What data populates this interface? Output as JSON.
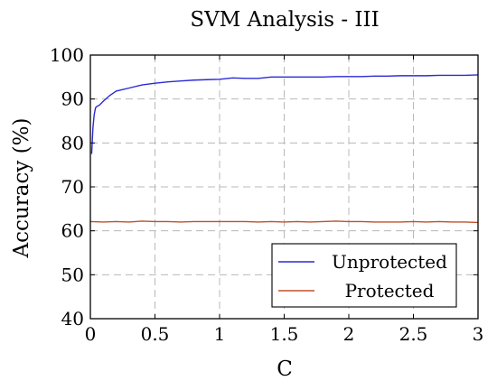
{
  "chart_data": {
    "type": "line",
    "title": "SVM Analysis - III",
    "xlabel": "C",
    "ylabel": "Accuracy (%)",
    "xlim": [
      0,
      3
    ],
    "ylim": [
      40,
      100
    ],
    "xticks": [
      0,
      0.5,
      1,
      1.5,
      2,
      2.5,
      3
    ],
    "xtick_labels": [
      "0",
      "0.5",
      "1",
      "1.5",
      "2",
      "2.5",
      "3"
    ],
    "yticks": [
      40,
      50,
      60,
      70,
      80,
      90,
      100
    ],
    "ytick_labels": [
      "40",
      "50",
      "60",
      "70",
      "80",
      "90",
      "100"
    ],
    "grid": true,
    "legend_position": "bottom-right",
    "series": [
      {
        "name": "Unprotected",
        "color": "#2a2ad6",
        "x": [
          0.01,
          0.02,
          0.03,
          0.04,
          0.05,
          0.07,
          0.1,
          0.15,
          0.2,
          0.3,
          0.4,
          0.5,
          0.6,
          0.7,
          0.8,
          0.9,
          1.0,
          1.1,
          1.2,
          1.3,
          1.4,
          1.5,
          1.6,
          1.7,
          1.8,
          1.9,
          2.0,
          2.1,
          2.2,
          2.3,
          2.4,
          2.5,
          2.6,
          2.7,
          2.8,
          2.9,
          3.0
        ],
        "y": [
          77.5,
          83.5,
          86.5,
          88.0,
          88.3,
          88.6,
          89.5,
          90.8,
          91.8,
          92.5,
          93.2,
          93.6,
          93.9,
          94.1,
          94.3,
          94.4,
          94.5,
          94.8,
          94.7,
          94.7,
          95.0,
          95.0,
          95.0,
          95.0,
          95.0,
          95.1,
          95.1,
          95.1,
          95.2,
          95.2,
          95.3,
          95.3,
          95.3,
          95.4,
          95.4,
          95.4,
          95.5
        ]
      },
      {
        "name": "Protected",
        "color": "#c0502a",
        "x": [
          0.0,
          0.1,
          0.2,
          0.3,
          0.4,
          0.5,
          0.6,
          0.7,
          0.8,
          0.9,
          1.0,
          1.1,
          1.2,
          1.3,
          1.4,
          1.5,
          1.6,
          1.7,
          1.8,
          1.9,
          2.0,
          2.1,
          2.2,
          2.3,
          2.4,
          2.5,
          2.6,
          2.7,
          2.8,
          2.9,
          3.0
        ],
        "y": [
          62.1,
          62.0,
          62.1,
          62.0,
          62.2,
          62.1,
          62.1,
          62.0,
          62.1,
          62.1,
          62.1,
          62.1,
          62.1,
          62.0,
          62.1,
          62.0,
          62.1,
          62.0,
          62.1,
          62.2,
          62.1,
          62.1,
          62.0,
          62.0,
          62.0,
          62.1,
          62.0,
          62.1,
          62.0,
          62.0,
          61.9
        ]
      }
    ]
  }
}
